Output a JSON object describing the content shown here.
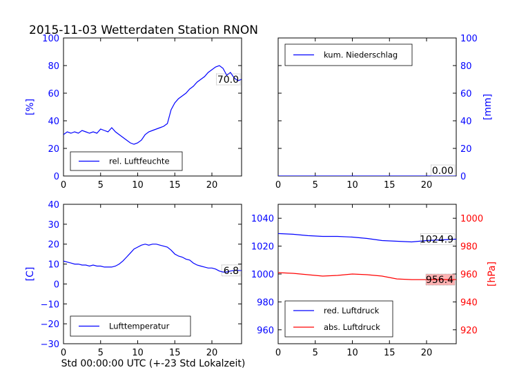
{
  "title": "2015-11-03 Wetterdaten Station RNON",
  "xlabel": "Std 00:00:00 UTC (+-23 Std Lokalzeit)",
  "colors": {
    "blue": "#0000ff",
    "red": "#ff0000",
    "axis": "#000000"
  },
  "chart_data": [
    {
      "id": "humidity",
      "type": "line",
      "ylabel": "[%]",
      "xlim": [
        0,
        24
      ],
      "ylim": [
        0,
        100
      ],
      "xticks": [
        0,
        5,
        10,
        15,
        20
      ],
      "yticks": [
        0,
        20,
        40,
        60,
        80,
        100
      ],
      "tick_color": "#0000ff",
      "legend": "bottom-left",
      "last_value_label": "70.0",
      "series": [
        {
          "name": "rel. Luftfeuchte",
          "color": "#0000ff",
          "x": [
            0,
            0.5,
            1,
            1.5,
            2,
            2.5,
            3,
            3.5,
            4,
            4.5,
            5,
            5.5,
            6,
            6.5,
            7,
            7.5,
            8,
            8.5,
            9,
            9.5,
            10,
            10.5,
            11,
            11.5,
            12,
            12.5,
            13,
            13.5,
            14,
            14.5,
            15,
            15.5,
            16,
            16.5,
            17,
            17.5,
            18,
            18.5,
            19,
            19.5,
            20,
            20.5,
            21,
            21.5,
            22,
            22.5,
            23,
            23.5,
            24
          ],
          "y": [
            30,
            32,
            31,
            32,
            31,
            33,
            32,
            31,
            32,
            31,
            34,
            33,
            32,
            35,
            32,
            30,
            28,
            26,
            24,
            23,
            24,
            26,
            30,
            32,
            33,
            34,
            35,
            36,
            38,
            48,
            53,
            56,
            58,
            60,
            63,
            65,
            68,
            70,
            72,
            75,
            77,
            79,
            80,
            78,
            73,
            75,
            71,
            69,
            70
          ]
        }
      ]
    },
    {
      "id": "precip",
      "type": "line",
      "ylabel": "[mm]",
      "xlim": [
        0,
        24
      ],
      "ylim": [
        0,
        100
      ],
      "xticks": [
        0,
        5,
        10,
        15,
        20
      ],
      "yticks": [
        0,
        20,
        40,
        60,
        80,
        100
      ],
      "tick_color": "#0000ff",
      "legend": "top-left",
      "last_value_label": "0.00",
      "series": [
        {
          "name": "kum. Niederschlag",
          "color": "#0000ff",
          "x": [
            0,
            24
          ],
          "y": [
            0,
            0
          ]
        }
      ]
    },
    {
      "id": "temperature",
      "type": "line",
      "ylabel": "[C]",
      "xlim": [
        0,
        24
      ],
      "ylim": [
        -30,
        40
      ],
      "xticks": [
        0,
        5,
        10,
        15,
        20
      ],
      "yticks": [
        -30,
        -20,
        -10,
        0,
        10,
        20,
        30,
        40
      ],
      "tick_color": "#0000ff",
      "legend": "bottom-left",
      "last_value_label": "6.8",
      "series": [
        {
          "name": "Lufttemperatur",
          "color": "#0000ff",
          "x": [
            0,
            0.5,
            1,
            1.5,
            2,
            2.5,
            3,
            3.5,
            4,
            4.5,
            5,
            5.5,
            6,
            6.5,
            7,
            7.5,
            8,
            8.5,
            9,
            9.5,
            10,
            10.5,
            11,
            11.5,
            12,
            12.5,
            13,
            13.5,
            14,
            14.5,
            15,
            15.5,
            16,
            16.5,
            17,
            17.5,
            18,
            18.5,
            19,
            19.5,
            20,
            20.5,
            21,
            21.5,
            22,
            22.5,
            23,
            23.5,
            24
          ],
          "y": [
            11.5,
            11,
            10.5,
            10,
            10,
            9.5,
            9.5,
            9,
            9.5,
            9,
            9,
            8.5,
            8.5,
            8.5,
            9,
            10,
            11.5,
            13.5,
            15.5,
            17.5,
            18.5,
            19.5,
            20,
            19.5,
            20,
            20,
            19.5,
            19,
            18.5,
            17,
            15,
            14,
            13.5,
            12.5,
            12,
            10.5,
            9.5,
            9,
            8.5,
            8,
            8,
            7.5,
            6.5,
            6,
            6,
            6.5,
            6.8,
            6.8,
            6.8
          ]
        }
      ]
    },
    {
      "id": "pressure",
      "type": "line",
      "ylim_left": [
        950,
        1050
      ],
      "ylim_right": [
        910,
        1010
      ],
      "ylabel_right": "[hPa]",
      "xlim": [
        0,
        24
      ],
      "xticks": [
        0,
        5,
        10,
        15,
        20
      ],
      "yticks_left": [
        960,
        980,
        1000,
        1020,
        1040
      ],
      "yticks_right": [
        920,
        940,
        960,
        980,
        1000
      ],
      "legend": "bottom-left",
      "series": [
        {
          "name": "red. Luftdruck",
          "color": "#0000ff",
          "axis": "left",
          "last_value_label": "1024.9",
          "x": [
            0,
            2,
            4,
            6,
            8,
            10,
            12,
            14,
            16,
            18,
            20,
            22,
            24
          ],
          "y": [
            1029,
            1028.5,
            1027.5,
            1027,
            1027,
            1026.5,
            1025.5,
            1024,
            1023.5,
            1023,
            1024,
            1024.5,
            1025
          ]
        },
        {
          "name": "abs. Luftdruck",
          "color": "#ff0000",
          "axis": "left",
          "last_value_label": "956.4",
          "x": [
            0,
            2,
            4,
            6,
            8,
            10,
            12,
            14,
            16,
            18,
            20,
            22,
            24
          ],
          "y": [
            1001,
            1000.5,
            999.5,
            998.5,
            999,
            1000,
            999.5,
            998.5,
            996.5,
            996,
            996,
            996,
            996
          ]
        }
      ]
    }
  ]
}
